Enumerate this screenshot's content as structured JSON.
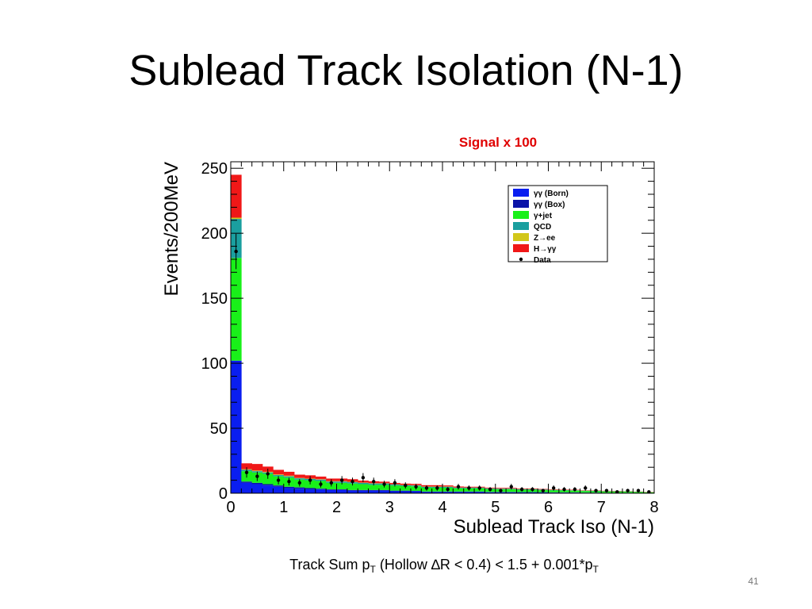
{
  "slide": {
    "title": "Sublead Track Isolation (N-1)",
    "signal_note": "Signal x 100",
    "caption": {
      "part1": "Track Sum p",
      "sub1": "T",
      "part2": " (Hollow ∆R < 0.4) < 1.5 + 0.001*p",
      "sub2": "T"
    },
    "page_number": "41"
  },
  "chart_data": {
    "type": "bar",
    "stacked": true,
    "xlabel": "Sublead Track Iso (N-1)",
    "ylabel": "Events/200MeV",
    "xlim": [
      0,
      8
    ],
    "ylim": [
      0,
      255
    ],
    "bin_width": 0.2,
    "x_ticks": [
      "0",
      "1",
      "2",
      "3",
      "4",
      "5",
      "6",
      "7",
      "8"
    ],
    "y_ticks": [
      "0",
      "50",
      "100",
      "150",
      "200",
      "250"
    ],
    "legend_position": "top-right",
    "series": [
      {
        "name": "γγ (Born)",
        "color": "#0a1ef0",
        "values": [
          102,
          8,
          7,
          6,
          5,
          4,
          3.5,
          3,
          3,
          2.5,
          2.5,
          2,
          2,
          2,
          2,
          1.5,
          1.5,
          1.5,
          1,
          1,
          1,
          1,
          1,
          1,
          0.8,
          0.8,
          0.8,
          0.7,
          0.7,
          0.6,
          0.5,
          0.5,
          0.5,
          0.4,
          0.4,
          0.3,
          0.3,
          0.3,
          0.2,
          0.2
        ]
      },
      {
        "name": "γγ (Box)",
        "color": "#0b13a8",
        "values": [
          0,
          1,
          1,
          1,
          1,
          1,
          1,
          1,
          0.5,
          0.5,
          0.5,
          0.5,
          0.5,
          0.5,
          0.5,
          0.5,
          0.5,
          0.3,
          0.3,
          0.3,
          0.3,
          0.3,
          0.3,
          0.3,
          0.2,
          0.2,
          0.2,
          0.2,
          0.2,
          0.2,
          0.2,
          0.2,
          0.2,
          0.1,
          0.1,
          0.1,
          0.1,
          0.1,
          0.1,
          0.1
        ]
      },
      {
        "name": "γ+jet",
        "color": "#19f019",
        "values": [
          79,
          8,
          8,
          8,
          7,
          7,
          6,
          6,
          6,
          5,
          5,
          5,
          4.5,
          4,
          4,
          4,
          3.5,
          3.5,
          3,
          3,
          3,
          2.5,
          2.5,
          2.5,
          2.2,
          2,
          2,
          1.8,
          1.8,
          1.6,
          1.5,
          1.4,
          1.3,
          1.2,
          1.1,
          1,
          0.9,
          0.8,
          0.6,
          0.4
        ]
      },
      {
        "name": "QCD",
        "color": "#1a9f9f",
        "values": [
          30,
          1,
          1,
          1,
          1,
          1,
          1,
          1,
          1,
          1,
          1,
          1,
          1,
          1,
          1,
          0.7,
          0.7,
          0.7,
          0.7,
          0.7,
          0.7,
          0.5,
          0.5,
          0.5,
          0.5,
          0.5,
          0.5,
          0.4,
          0.4,
          0.4,
          0.4,
          0.3,
          0.3,
          0.3,
          0.3,
          0.2,
          0.2,
          0.2,
          0.2,
          0.1
        ]
      },
      {
        "name": "Z→ee",
        "color": "#d2c71a",
        "values": [
          1,
          0.5,
          0.5,
          0.5,
          0.5,
          0.5,
          0.3,
          0.3,
          0.3,
          0.3,
          0.3,
          0.3,
          0.2,
          0.2,
          0.2,
          0.2,
          0.2,
          0.2,
          0.2,
          0.2,
          0.2,
          0.1,
          0.1,
          0.1,
          0.1,
          0.1,
          0.1,
          0.1,
          0.1,
          0.1,
          0.1,
          0.1,
          0.1,
          0.1,
          0.1,
          0.1,
          0.1,
          0.1,
          0.1,
          0.1
        ]
      },
      {
        "name": "H→γγ",
        "color": "#f01818",
        "values": [
          33,
          4.5,
          5,
          4,
          3.5,
          3,
          2.5,
          2.5,
          2,
          2,
          2,
          2,
          1.5,
          1.5,
          1.2,
          1,
          1,
          1,
          1,
          1,
          0.8,
          0.8,
          0.6,
          0.6,
          0.5,
          0.5,
          0.5,
          0.4,
          0.4,
          0.4,
          0.3,
          0.3,
          0.3,
          0.2,
          0.2,
          0.2,
          0.2,
          0.1,
          0.1,
          0.1
        ]
      }
    ],
    "data_points": {
      "name": "Data",
      "x": [
        0.1,
        0.3,
        0.5,
        0.7,
        0.9,
        1.1,
        1.3,
        1.5,
        1.7,
        1.9,
        2.1,
        2.3,
        2.5,
        2.7,
        2.9,
        3.1,
        3.3,
        3.5,
        3.7,
        3.9,
        4.1,
        4.3,
        4.5,
        4.7,
        4.9,
        5.1,
        5.3,
        5.5,
        5.7,
        5.9,
        6.1,
        6.3,
        6.5,
        6.7,
        6.9,
        7.1,
        7.3,
        7.5,
        7.7,
        7.9
      ],
      "y": [
        186,
        16,
        13,
        15,
        10,
        9,
        8,
        10,
        7,
        8,
        10,
        9,
        12,
        9,
        7,
        8,
        6,
        5,
        4,
        4,
        3,
        5,
        4,
        4,
        3,
        2,
        5,
        3,
        3,
        2,
        4,
        3,
        3,
        4,
        2,
        2,
        1,
        2,
        2,
        1
      ],
      "err": [
        13.6,
        4,
        3.6,
        3.9,
        3.2,
        3,
        2.8,
        3.2,
        2.6,
        2.8,
        3.2,
        3,
        3.5,
        3,
        2.6,
        2.8,
        2.4,
        2.2,
        2,
        2,
        1.7,
        2.2,
        2,
        2,
        1.7,
        1.4,
        2.2,
        1.7,
        1.7,
        1.4,
        2,
        1.7,
        1.7,
        2,
        1.4,
        1.4,
        1,
        1.4,
        1.4,
        1
      ]
    }
  }
}
